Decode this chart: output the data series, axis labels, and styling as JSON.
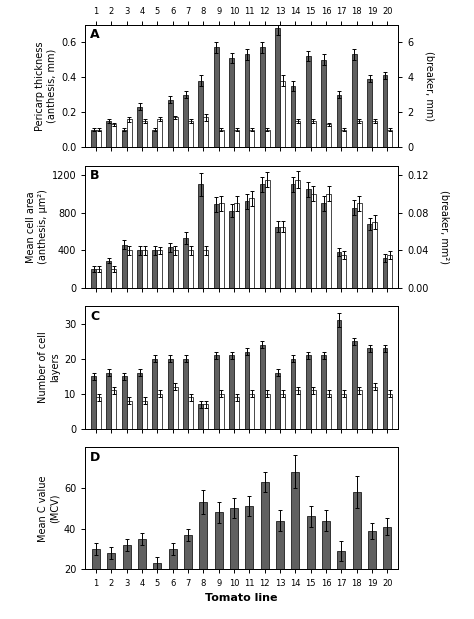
{
  "tomato_lines": [
    1,
    2,
    3,
    4,
    5,
    6,
    7,
    8,
    9,
    10,
    11,
    12,
    13,
    14,
    15,
    16,
    17,
    18,
    19,
    20
  ],
  "panel_A": {
    "label": "A",
    "anthesis": [
      0.1,
      0.15,
      0.1,
      0.23,
      0.1,
      0.27,
      0.3,
      0.38,
      0.57,
      0.51,
      0.53,
      0.57,
      0.68,
      0.35,
      0.52,
      0.5,
      0.3,
      0.53,
      0.39,
      0.41
    ],
    "anthesis_err": [
      0.01,
      0.01,
      0.01,
      0.02,
      0.01,
      0.02,
      0.02,
      0.03,
      0.03,
      0.03,
      0.03,
      0.03,
      0.04,
      0.03,
      0.03,
      0.03,
      0.02,
      0.03,
      0.02,
      0.02
    ],
    "breaker": [
      1.0,
      1.3,
      1.6,
      1.5,
      1.6,
      1.7,
      1.5,
      1.7,
      1.0,
      1.0,
      1.0,
      1.0,
      3.8,
      1.5,
      1.5,
      1.3,
      1.0,
      1.5,
      1.5,
      1.0
    ],
    "breaker_err": [
      0.1,
      0.1,
      0.15,
      0.1,
      0.1,
      0.1,
      0.1,
      0.2,
      0.1,
      0.1,
      0.1,
      0.1,
      0.3,
      0.1,
      0.1,
      0.1,
      0.1,
      0.1,
      0.1,
      0.1
    ],
    "ylabel_left": "Pericarp thickness\n(anthesis, mm)",
    "ylabel_right": "(breaker, mm)",
    "ylim_left": [
      0,
      0.7
    ],
    "ylim_right": [
      0,
      7
    ],
    "yticks_left": [
      0.0,
      0.2,
      0.4,
      0.6
    ],
    "yticks_right": [
      0,
      2,
      4,
      6
    ]
  },
  "panel_B": {
    "label": "B",
    "anthesis": [
      200,
      290,
      460,
      400,
      400,
      430,
      530,
      1100,
      890,
      820,
      920,
      1100,
      650,
      1100,
      1050,
      900,
      380,
      850,
      680,
      320
    ],
    "anthesis_err": [
      30,
      30,
      50,
      50,
      50,
      50,
      60,
      120,
      80,
      70,
      80,
      80,
      60,
      80,
      80,
      80,
      40,
      80,
      60,
      40
    ],
    "breaker": [
      0.02,
      0.02,
      0.04,
      0.04,
      0.04,
      0.04,
      0.04,
      0.04,
      0.09,
      0.09,
      0.095,
      0.115,
      0.065,
      0.115,
      0.1,
      0.1,
      0.035,
      0.09,
      0.07,
      0.035
    ],
    "breaker_err": [
      0.003,
      0.003,
      0.005,
      0.005,
      0.004,
      0.005,
      0.005,
      0.005,
      0.008,
      0.008,
      0.008,
      0.008,
      0.006,
      0.009,
      0.008,
      0.008,
      0.004,
      0.008,
      0.007,
      0.004
    ],
    "ylabel_left": "Mean cell area\n(anthesis, μm²)",
    "ylabel_right": "(breaker, mm²)",
    "ylim_left": [
      0,
      1300
    ],
    "ylim_right": [
      0,
      0.13
    ],
    "yticks_left": [
      0,
      400,
      800,
      1200
    ],
    "yticks_right": [
      0.0,
      0.04,
      0.08,
      0.12
    ]
  },
  "panel_C": {
    "label": "C",
    "anthesis": [
      15,
      16,
      15,
      16,
      20,
      20,
      20,
      7,
      21,
      21,
      22,
      24,
      16,
      20,
      21,
      21,
      31,
      25,
      23,
      23
    ],
    "anthesis_err": [
      1,
      1,
      1,
      1,
      1,
      1,
      1,
      1,
      1,
      1,
      1,
      1,
      1,
      1,
      1,
      1,
      2,
      1,
      1,
      1
    ],
    "breaker": [
      9,
      11,
      8,
      8,
      10,
      12,
      9,
      7,
      10,
      9,
      10,
      10,
      10,
      11,
      11,
      10,
      10,
      11,
      12,
      10
    ],
    "breaker_err": [
      1,
      1,
      1,
      1,
      1,
      1,
      1,
      1,
      1,
      1,
      1,
      1,
      1,
      1,
      1,
      1,
      1,
      1,
      1,
      1
    ],
    "ylabel_left": "Number of cell\nlayers",
    "ylim_left": [
      0,
      35
    ],
    "yticks_left": [
      0,
      10,
      20,
      30
    ]
  },
  "panel_D": {
    "label": "D",
    "anthesis": [
      30,
      28,
      32,
      35,
      23,
      30,
      37,
      53,
      48,
      50,
      51,
      63,
      44,
      68,
      46,
      44,
      29,
      58,
      39,
      41
    ],
    "anthesis_err": [
      3,
      3,
      3,
      3,
      3,
      3,
      3,
      6,
      5,
      5,
      5,
      5,
      5,
      8,
      5,
      5,
      5,
      8,
      4,
      4
    ],
    "ylabel_left": "Mean C value\n(MCV)",
    "ylim_left": [
      20,
      80
    ],
    "yticks_left": [
      20,
      40,
      60
    ]
  },
  "bar_color_dark": "#606060",
  "bar_color_light": "#ffffff",
  "bar_width": 0.32,
  "figure_width": 4.74,
  "figure_height": 6.19,
  "xlabel": "Tomato line"
}
